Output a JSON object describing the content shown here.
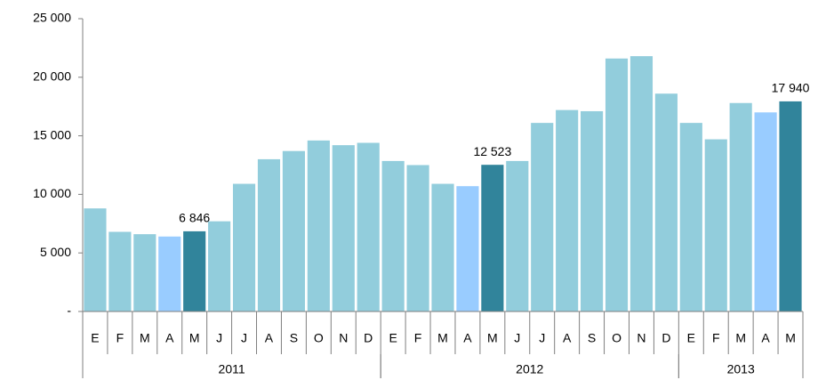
{
  "chart_data": {
    "type": "bar",
    "categories": [
      "E",
      "F",
      "M",
      "A",
      "M",
      "J",
      "J",
      "A",
      "S",
      "O",
      "N",
      "D",
      "E",
      "F",
      "M",
      "A",
      "M",
      "J",
      "J",
      "A",
      "S",
      "O",
      "N",
      "D",
      "E",
      "F",
      "M",
      "A",
      "M"
    ],
    "x_groups": [
      {
        "name": "2011",
        "span": 12
      },
      {
        "name": "2012",
        "span": 12
      },
      {
        "name": "2013",
        "span": 5
      }
    ],
    "values": [
      8800,
      6800,
      6600,
      6400,
      6846,
      7700,
      10900,
      13000,
      13700,
      14600,
      14200,
      14400,
      12850,
      12500,
      10900,
      10700,
      12523,
      12850,
      16100,
      17200,
      17100,
      21600,
      21800,
      18600,
      16100,
      14700,
      17800,
      17000,
      17940
    ],
    "value_labels": [
      null,
      null,
      null,
      null,
      "6 846",
      null,
      null,
      null,
      null,
      null,
      null,
      null,
      null,
      null,
      null,
      null,
      "12 523",
      null,
      null,
      null,
      null,
      null,
      null,
      null,
      null,
      null,
      null,
      null,
      "17 940"
    ],
    "colors": [
      "#92cddc",
      "#92cddc",
      "#92cddc",
      "#99ccff",
      "#31849b",
      "#92cddc",
      "#92cddc",
      "#92cddc",
      "#92cddc",
      "#92cddc",
      "#92cddc",
      "#92cddc",
      "#92cddc",
      "#92cddc",
      "#92cddc",
      "#99ccff",
      "#31849b",
      "#92cddc",
      "#92cddc",
      "#92cddc",
      "#92cddc",
      "#92cddc",
      "#92cddc",
      "#92cddc",
      "#92cddc",
      "#92cddc",
      "#92cddc",
      "#99ccff",
      "#31849b"
    ],
    "ylim": [
      0,
      25000
    ],
    "yticks": [
      {
        "value": 0,
        "label": "-"
      },
      {
        "value": 5000,
        "label": "5 000"
      },
      {
        "value": 10000,
        "label": "10 000"
      },
      {
        "value": 15000,
        "label": "15 000"
      },
      {
        "value": 20000,
        "label": "20 000"
      },
      {
        "value": 25000,
        "label": "25 000"
      }
    ],
    "grid": false
  }
}
